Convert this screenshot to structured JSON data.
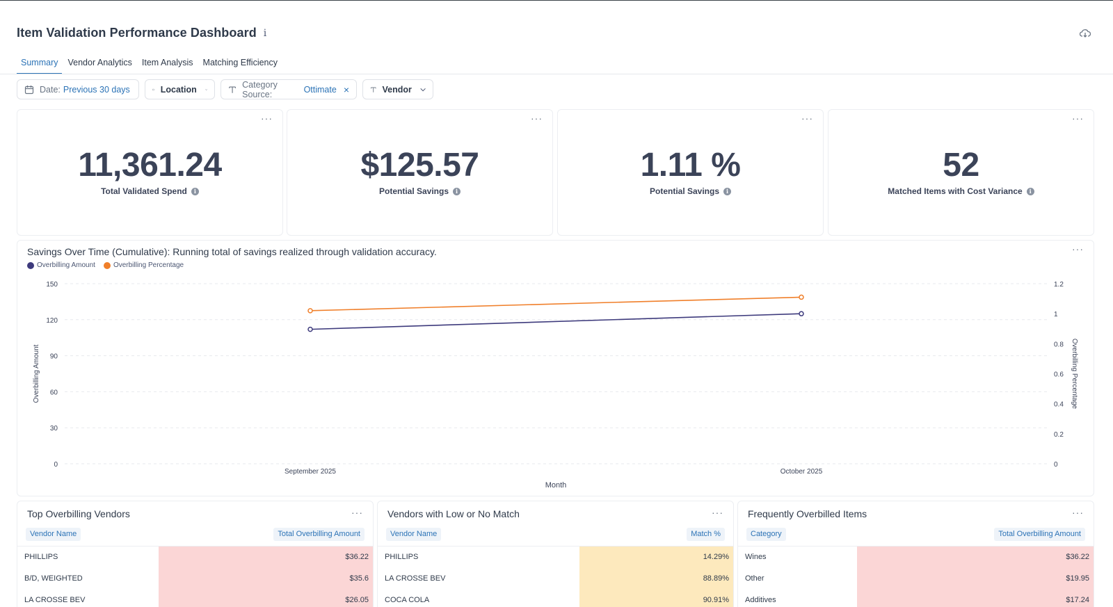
{
  "header": {
    "title": "Item Validation Performance Dashboard",
    "info_glyph": "i"
  },
  "icons": {
    "download": "cloud-download-icon",
    "calendar": "calendar-icon",
    "tag": "tag-icon",
    "text": "text-type-icon",
    "chevron": "chevron-down-icon",
    "close": "close-icon"
  },
  "tabs": [
    {
      "label": "Summary",
      "active": true
    },
    {
      "label": "Vendor Analytics",
      "active": false
    },
    {
      "label": "Item Analysis",
      "active": false
    },
    {
      "label": "Matching Efficiency",
      "active": false
    }
  ],
  "filters": {
    "date": {
      "label": "Date:",
      "value": "Previous 30 days"
    },
    "location": {
      "label": "Location"
    },
    "category": {
      "label": "Category Source:",
      "value": "Ottimate",
      "clear": "×"
    },
    "vendor": {
      "label": "Vendor"
    }
  },
  "menu_glyph": "···",
  "kpis": [
    {
      "value": "11,361.24",
      "label": "Total Validated Spend"
    },
    {
      "value": "$125.57",
      "label": "Potential Savings"
    },
    {
      "value": "1.11 %",
      "label": "Potential Savings"
    },
    {
      "value": "52",
      "label": "Matched Items with Cost Variance"
    }
  ],
  "chart_data": {
    "type": "line",
    "title": "Savings Over Time (Cumulative): Running total of savings realized through validation accuracy.",
    "xlabel": "Month",
    "ylabel": "Overbilling Amount",
    "y2label": "Overbilling Percentage",
    "categories": [
      "September 2025",
      "October 2025"
    ],
    "ylim": [
      0,
      150
    ],
    "y2lim": [
      0,
      1.2
    ],
    "yticks": [
      "0",
      "30",
      "60",
      "90",
      "120",
      "150"
    ],
    "y2ticks": [
      "0",
      "0.2",
      "0.4",
      "0.6",
      "0.8",
      "1",
      "1.2"
    ],
    "legend_position": "top-left",
    "series": [
      {
        "name": "Overbilling Amount",
        "axis": "left",
        "color": "#3d3a7c",
        "values": [
          112,
          125
        ]
      },
      {
        "name": "Overbilling Percentage",
        "axis": "right",
        "color": "#f07f2a",
        "values": [
          1.02,
          1.11
        ]
      }
    ]
  },
  "tables": [
    {
      "title": "Top Overbilling Vendors",
      "col1": "Vendor Name",
      "col2": "Total Overbilling Amount",
      "bar_color": "#fbd6d6",
      "rows": [
        {
          "name": "PHILLIPS",
          "value": "$36.22"
        },
        {
          "name": "B/D, WEIGHTED",
          "value": "$35.6"
        },
        {
          "name": "LA CROSSE BEV",
          "value": "$26.05"
        }
      ]
    },
    {
      "title": "Vendors with Low or No Match",
      "col1": "Vendor Name",
      "col2": "Match %",
      "bar_color": "#fde9bd",
      "rows": [
        {
          "name": "PHILLIPS",
          "value": "14.29%"
        },
        {
          "name": "LA CROSSE BEV",
          "value": "88.89%"
        },
        {
          "name": "COCA COLA",
          "value": "90.91%"
        }
      ]
    },
    {
      "title": "Frequently Overbilled Items",
      "col1": "Category",
      "col2": "Total Overbilling Amount",
      "bar_color": "#fbd6d6",
      "rows": [
        {
          "name": "Wines",
          "value": "$36.22"
        },
        {
          "name": "Other",
          "value": "$19.95"
        },
        {
          "name": "Additives",
          "value": "$17.24"
        }
      ]
    }
  ]
}
